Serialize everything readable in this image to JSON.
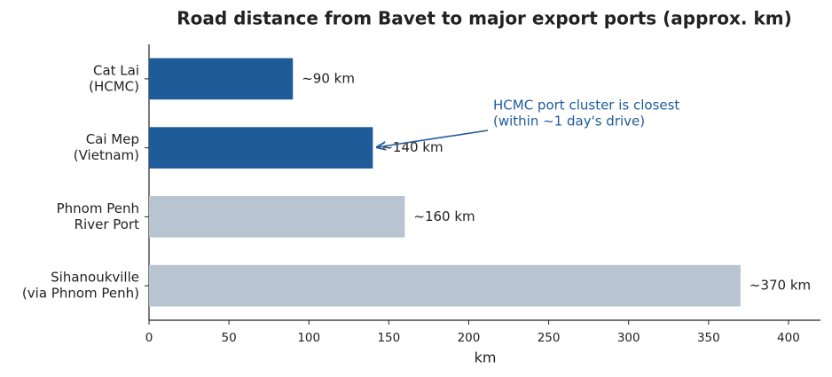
{
  "chart_data": {
    "type": "barh",
    "title": "Road distance from Bavet to major export ports (approx. km)",
    "categories": [
      [
        "Cat Lai",
        "(HCMC)"
      ],
      [
        "Cai Mep",
        "(Vietnam)"
      ],
      [
        "Phnom Penh",
        "River Port"
      ],
      [
        "Sihanoukville",
        "(via Phnom Penh)"
      ]
    ],
    "values": [
      90,
      140,
      160,
      370
    ],
    "value_labels": [
      "~90 km",
      "~140 km",
      "~160 km",
      "~370 km"
    ],
    "colors": [
      "#1f5b99",
      "#1f5b99",
      "#b8c4d0",
      "#b8c4d0"
    ],
    "xlabel": "km",
    "xlim": [
      0,
      420
    ],
    "xticks": [
      0,
      50,
      100,
      150,
      200,
      250,
      300,
      350,
      400
    ],
    "annotation": [
      "HCMC port cluster is closest",
      "(within ~1 day's drive)"
    ],
    "annotation_color": "#1f5b99"
  }
}
